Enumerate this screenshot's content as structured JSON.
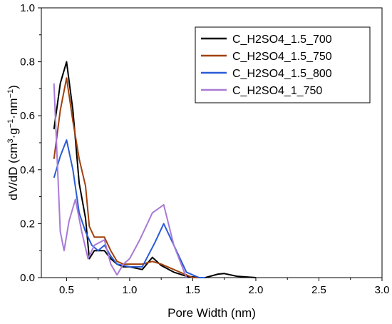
{
  "chart_data": {
    "type": "line",
    "title": "",
    "xlabel": "Pore Width (nm)",
    "ylabel_main": "dV/dD (cm",
    "ylabel_sup1": "3",
    "ylabel_mid": "·g",
    "ylabel_sup2": "−1",
    "ylabel_mid2": "·nm",
    "ylabel_sup3": "−1",
    "ylabel_end": ")",
    "xlim": [
      0.3,
      3.0
    ],
    "ylim": [
      0.0,
      1.0
    ],
    "x_ticks": [
      0.5,
      1.0,
      1.5,
      2.0,
      2.5,
      3.0
    ],
    "x_tick_labels": [
      "0.5",
      "1.0",
      "1.5",
      "2.0",
      "2.5",
      "3.0"
    ],
    "y_ticks": [
      0.0,
      0.2,
      0.4,
      0.6,
      0.8,
      1.0
    ],
    "y_tick_labels": [
      "0.0",
      "0.2",
      "0.4",
      "0.6",
      "0.8",
      "1.0"
    ],
    "grid": false,
    "legend_position": "top-right",
    "series": [
      {
        "name": "C_H2SO4_1.5_700",
        "color": "#000000",
        "points": [
          [
            0.4,
            0.55
          ],
          [
            0.45,
            0.72
          ],
          [
            0.5,
            0.8
          ],
          [
            0.55,
            0.62
          ],
          [
            0.6,
            0.35
          ],
          [
            0.65,
            0.22
          ],
          [
            0.68,
            0.07
          ],
          [
            0.72,
            0.1
          ],
          [
            0.8,
            0.1
          ],
          [
            0.85,
            0.07
          ],
          [
            0.9,
            0.05
          ],
          [
            0.95,
            0.04
          ],
          [
            1.0,
            0.04
          ],
          [
            1.05,
            0.035
          ],
          [
            1.1,
            0.03
          ],
          [
            1.18,
            0.075
          ],
          [
            1.25,
            0.045
          ],
          [
            1.35,
            0.02
          ],
          [
            1.45,
            0.005
          ],
          [
            1.55,
            0.0
          ],
          [
            1.6,
            0.0
          ],
          [
            1.7,
            0.013
          ],
          [
            1.75,
            0.015
          ],
          [
            1.85,
            0.005
          ],
          [
            2.0,
            0.0
          ]
        ]
      },
      {
        "name": "C_H2SO4_1.5_750",
        "color": "#a0410d",
        "points": [
          [
            0.4,
            0.44
          ],
          [
            0.45,
            0.62
          ],
          [
            0.5,
            0.74
          ],
          [
            0.55,
            0.58
          ],
          [
            0.6,
            0.44
          ],
          [
            0.65,
            0.34
          ],
          [
            0.68,
            0.19
          ],
          [
            0.72,
            0.15
          ],
          [
            0.8,
            0.15
          ],
          [
            0.85,
            0.1
          ],
          [
            0.9,
            0.06
          ],
          [
            0.95,
            0.05
          ],
          [
            1.0,
            0.05
          ],
          [
            1.1,
            0.05
          ],
          [
            1.18,
            0.06
          ],
          [
            1.25,
            0.05
          ],
          [
            1.35,
            0.03
          ],
          [
            1.45,
            0.01
          ],
          [
            1.5,
            0.0
          ],
          [
            1.6,
            0.0
          ]
        ]
      },
      {
        "name": "C_H2SO4_1.5_800",
        "color": "#2a5bd7",
        "points": [
          [
            0.4,
            0.37
          ],
          [
            0.45,
            0.45
          ],
          [
            0.5,
            0.51
          ],
          [
            0.55,
            0.4
          ],
          [
            0.6,
            0.24
          ],
          [
            0.65,
            0.17
          ],
          [
            0.7,
            0.12
          ],
          [
            0.75,
            0.1
          ],
          [
            0.8,
            0.12
          ],
          [
            0.85,
            0.08
          ],
          [
            0.9,
            0.05
          ],
          [
            1.0,
            0.04
          ],
          [
            1.1,
            0.04
          ],
          [
            1.2,
            0.13
          ],
          [
            1.27,
            0.2
          ],
          [
            1.35,
            0.12
          ],
          [
            1.45,
            0.02
          ],
          [
            1.55,
            0.0
          ],
          [
            1.6,
            0.0
          ]
        ]
      },
      {
        "name": "C_H2SO4_1_750",
        "color": "#a97ad6",
        "points": [
          [
            0.4,
            0.72
          ],
          [
            0.45,
            0.17
          ],
          [
            0.48,
            0.1
          ],
          [
            0.52,
            0.21
          ],
          [
            0.57,
            0.29
          ],
          [
            0.62,
            0.17
          ],
          [
            0.67,
            0.07
          ],
          [
            0.72,
            0.12
          ],
          [
            0.8,
            0.14
          ],
          [
            0.85,
            0.05
          ],
          [
            0.9,
            0.01
          ],
          [
            0.95,
            0.05
          ],
          [
            1.0,
            0.07
          ],
          [
            1.08,
            0.14
          ],
          [
            1.18,
            0.24
          ],
          [
            1.27,
            0.27
          ],
          [
            1.35,
            0.12
          ],
          [
            1.45,
            0.0
          ]
        ]
      }
    ]
  }
}
